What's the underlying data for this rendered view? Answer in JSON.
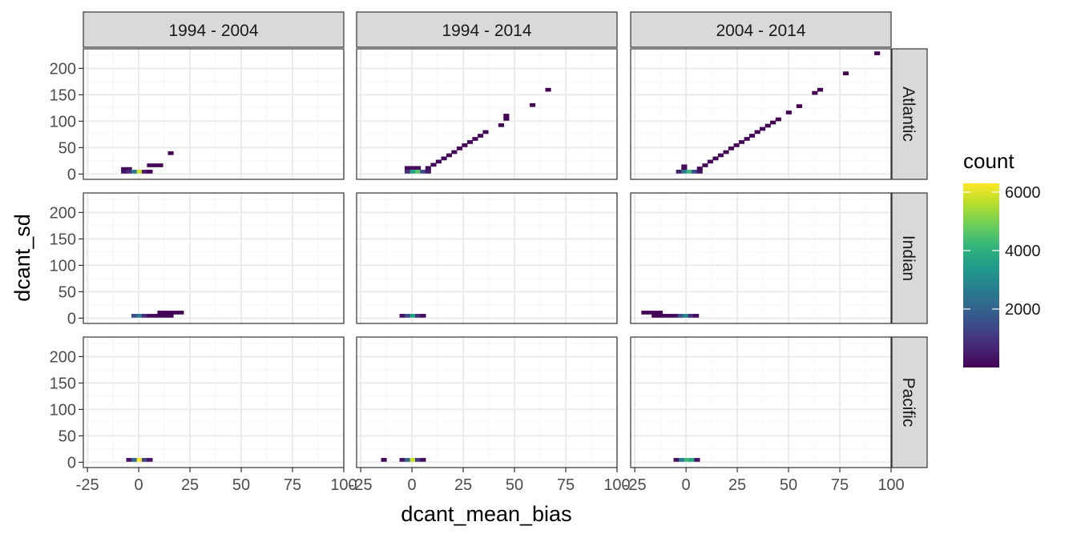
{
  "chart_data": {
    "type": "heatmap",
    "xlabel": "dcant_mean_bias",
    "ylabel": "dcant_sd",
    "col_facets": [
      "1994 - 2004",
      "1994 - 2014",
      "2004 - 2014"
    ],
    "row_facets": [
      "Atlantic",
      "Indian",
      "Pacific"
    ],
    "xlim": [
      -27,
      100
    ],
    "ylim": [
      -10,
      237
    ],
    "x_ticks": [
      -25,
      0,
      25,
      50,
      75,
      100
    ],
    "x_tick_labels": [
      "-25",
      "0",
      "25",
      "50",
      "75",
      "100"
    ],
    "y_ticks": [
      0,
      50,
      100,
      150,
      200
    ],
    "y_tick_labels": [
      "0",
      "50",
      "100",
      "150",
      "200"
    ],
    "bin_width": 2.55,
    "bin_height": 6.2,
    "grid": true,
    "legend": {
      "title": "count",
      "position": "right",
      "min": 0,
      "max": 6300,
      "ticks": [
        2000,
        4000,
        6000
      ],
      "tick_labels": [
        "2000",
        "4000",
        "6000"
      ]
    },
    "colors": {
      "viridis": [
        "#440154",
        "#482878",
        "#3e4989",
        "#31688e",
        "#26828e",
        "#1f9e89",
        "#35b779",
        "#6ece58",
        "#b5de2b",
        "#fde725"
      ],
      "strip_fill": "#d9d9d9",
      "panel_border": "#333333",
      "grid_major": "#ebebeb",
      "grid_minor": "#f5f5f5"
    },
    "panels": [
      {
        "row": "Atlantic",
        "col": "1994 - 2004",
        "cells": [
          [
            -7.3,
            10,
            100
          ],
          [
            -4.8,
            10,
            120
          ],
          [
            -7.3,
            5,
            300
          ],
          [
            -4.8,
            5,
            800
          ],
          [
            -2.3,
            5,
            2500
          ],
          [
            0.3,
            5,
            5800
          ],
          [
            2.8,
            5,
            500
          ],
          [
            5.3,
            5,
            80
          ],
          [
            5.3,
            17,
            60
          ],
          [
            7.8,
            17,
            40
          ],
          [
            10.4,
            17,
            30
          ],
          [
            15.5,
            40,
            20
          ]
        ]
      },
      {
        "row": "Atlantic",
        "col": "1994 - 2014",
        "cells": [
          [
            -2.3,
            12,
            150
          ],
          [
            0.3,
            12,
            200
          ],
          [
            2.8,
            12,
            150
          ],
          [
            -2.3,
            5,
            800
          ],
          [
            0.3,
            5,
            3500
          ],
          [
            2.8,
            5,
            4600
          ],
          [
            5.3,
            5,
            1500
          ],
          [
            7.8,
            5,
            400
          ],
          [
            7.8,
            12,
            200
          ],
          [
            10.4,
            18,
            150
          ],
          [
            12.9,
            24,
            120
          ],
          [
            15.5,
            30,
            100
          ],
          [
            18.0,
            36,
            90
          ],
          [
            20.5,
            42,
            80
          ],
          [
            23.1,
            49,
            70
          ],
          [
            25.6,
            55,
            60
          ],
          [
            28.2,
            61,
            50
          ],
          [
            30.7,
            67,
            40
          ],
          [
            33.3,
            73,
            30
          ],
          [
            35.8,
            80,
            20
          ],
          [
            43.4,
            93,
            15
          ],
          [
            45.9,
            105,
            15
          ],
          [
            45.9,
            111,
            15
          ],
          [
            58.7,
            131,
            10
          ],
          [
            66.3,
            160,
            10
          ]
        ]
      },
      {
        "row": "Atlantic",
        "col": "2004 - 2014",
        "cells": [
          [
            -1.0,
            15,
            120
          ],
          [
            -1.0,
            9,
            150
          ],
          [
            -3.6,
            5,
            500
          ],
          [
            -1.0,
            5,
            2500
          ],
          [
            1.5,
            5,
            4200
          ],
          [
            4.1,
            5,
            1500
          ],
          [
            6.6,
            5,
            300
          ],
          [
            6.6,
            11,
            200
          ],
          [
            9.2,
            17,
            150
          ],
          [
            11.7,
            24,
            120
          ],
          [
            14.3,
            30,
            100
          ],
          [
            16.8,
            36,
            90
          ],
          [
            19.4,
            42,
            80
          ],
          [
            21.9,
            49,
            70
          ],
          [
            24.5,
            55,
            60
          ],
          [
            27.0,
            61,
            50
          ],
          [
            29.6,
            67,
            50
          ],
          [
            32.1,
            73,
            40
          ],
          [
            34.7,
            80,
            40
          ],
          [
            37.2,
            86,
            30
          ],
          [
            39.8,
            92,
            25
          ],
          [
            42.3,
            98,
            20
          ],
          [
            44.9,
            104,
            20
          ],
          [
            50.0,
            117,
            15
          ],
          [
            55.1,
            129,
            15
          ],
          [
            62.7,
            154,
            10
          ],
          [
            65.3,
            160,
            10
          ],
          [
            77.8,
            191,
            10
          ],
          [
            93.1,
            229,
            10
          ]
        ]
      },
      {
        "row": "Indian",
        "col": "1994 - 2004",
        "cells": [
          [
            -2.3,
            5,
            1500
          ],
          [
            0.3,
            5,
            2500
          ],
          [
            2.8,
            5,
            700
          ],
          [
            5.3,
            5,
            200
          ],
          [
            7.8,
            5,
            150
          ],
          [
            10.4,
            5,
            120
          ],
          [
            12.9,
            5,
            100
          ],
          [
            15.5,
            5,
            80
          ],
          [
            10.4,
            11,
            60
          ],
          [
            12.9,
            11,
            50
          ],
          [
            15.5,
            11,
            40
          ],
          [
            18.0,
            11,
            30
          ],
          [
            20.5,
            11,
            20
          ]
        ]
      },
      {
        "row": "Indian",
        "col": "1994 - 2014",
        "cells": [
          [
            -4.8,
            5,
            300
          ],
          [
            -2.3,
            5,
            1500
          ],
          [
            0.3,
            5,
            3600
          ],
          [
            2.8,
            5,
            900
          ],
          [
            5.3,
            5,
            200
          ]
        ]
      },
      {
        "row": "Indian",
        "col": "2004 - 2014",
        "cells": [
          [
            -20.5,
            11,
            30
          ],
          [
            -18.0,
            11,
            40
          ],
          [
            -15.5,
            11,
            50
          ],
          [
            -12.9,
            11,
            60
          ],
          [
            -15.5,
            5,
            80
          ],
          [
            -12.9,
            5,
            100
          ],
          [
            -10.4,
            5,
            120
          ],
          [
            -7.8,
            5,
            150
          ],
          [
            -5.3,
            5,
            200
          ],
          [
            -2.8,
            5,
            1500
          ],
          [
            -0.3,
            5,
            3000
          ],
          [
            2.3,
            5,
            800
          ],
          [
            4.8,
            5,
            200
          ]
        ]
      },
      {
        "row": "Pacific",
        "col": "1994 - 2004",
        "cells": [
          [
            -4.8,
            5,
            300
          ],
          [
            -2.3,
            5,
            2000
          ],
          [
            0.3,
            5,
            6200
          ],
          [
            2.8,
            5,
            1200
          ],
          [
            5.3,
            5,
            300
          ]
        ]
      },
      {
        "row": "Pacific",
        "col": "1994 - 2014",
        "cells": [
          [
            -13.8,
            5,
            50
          ],
          [
            -4.8,
            5,
            300
          ],
          [
            -2.3,
            5,
            2000
          ],
          [
            0.3,
            5,
            5800
          ],
          [
            2.8,
            5,
            1000
          ],
          [
            5.3,
            5,
            200
          ]
        ]
      },
      {
        "row": "Pacific",
        "col": "2004 - 2014",
        "cells": [
          [
            -4.8,
            5,
            200
          ],
          [
            -2.3,
            5,
            2500
          ],
          [
            0.3,
            5,
            4200
          ],
          [
            2.8,
            5,
            3800
          ],
          [
            5.3,
            5,
            300
          ]
        ]
      }
    ]
  }
}
